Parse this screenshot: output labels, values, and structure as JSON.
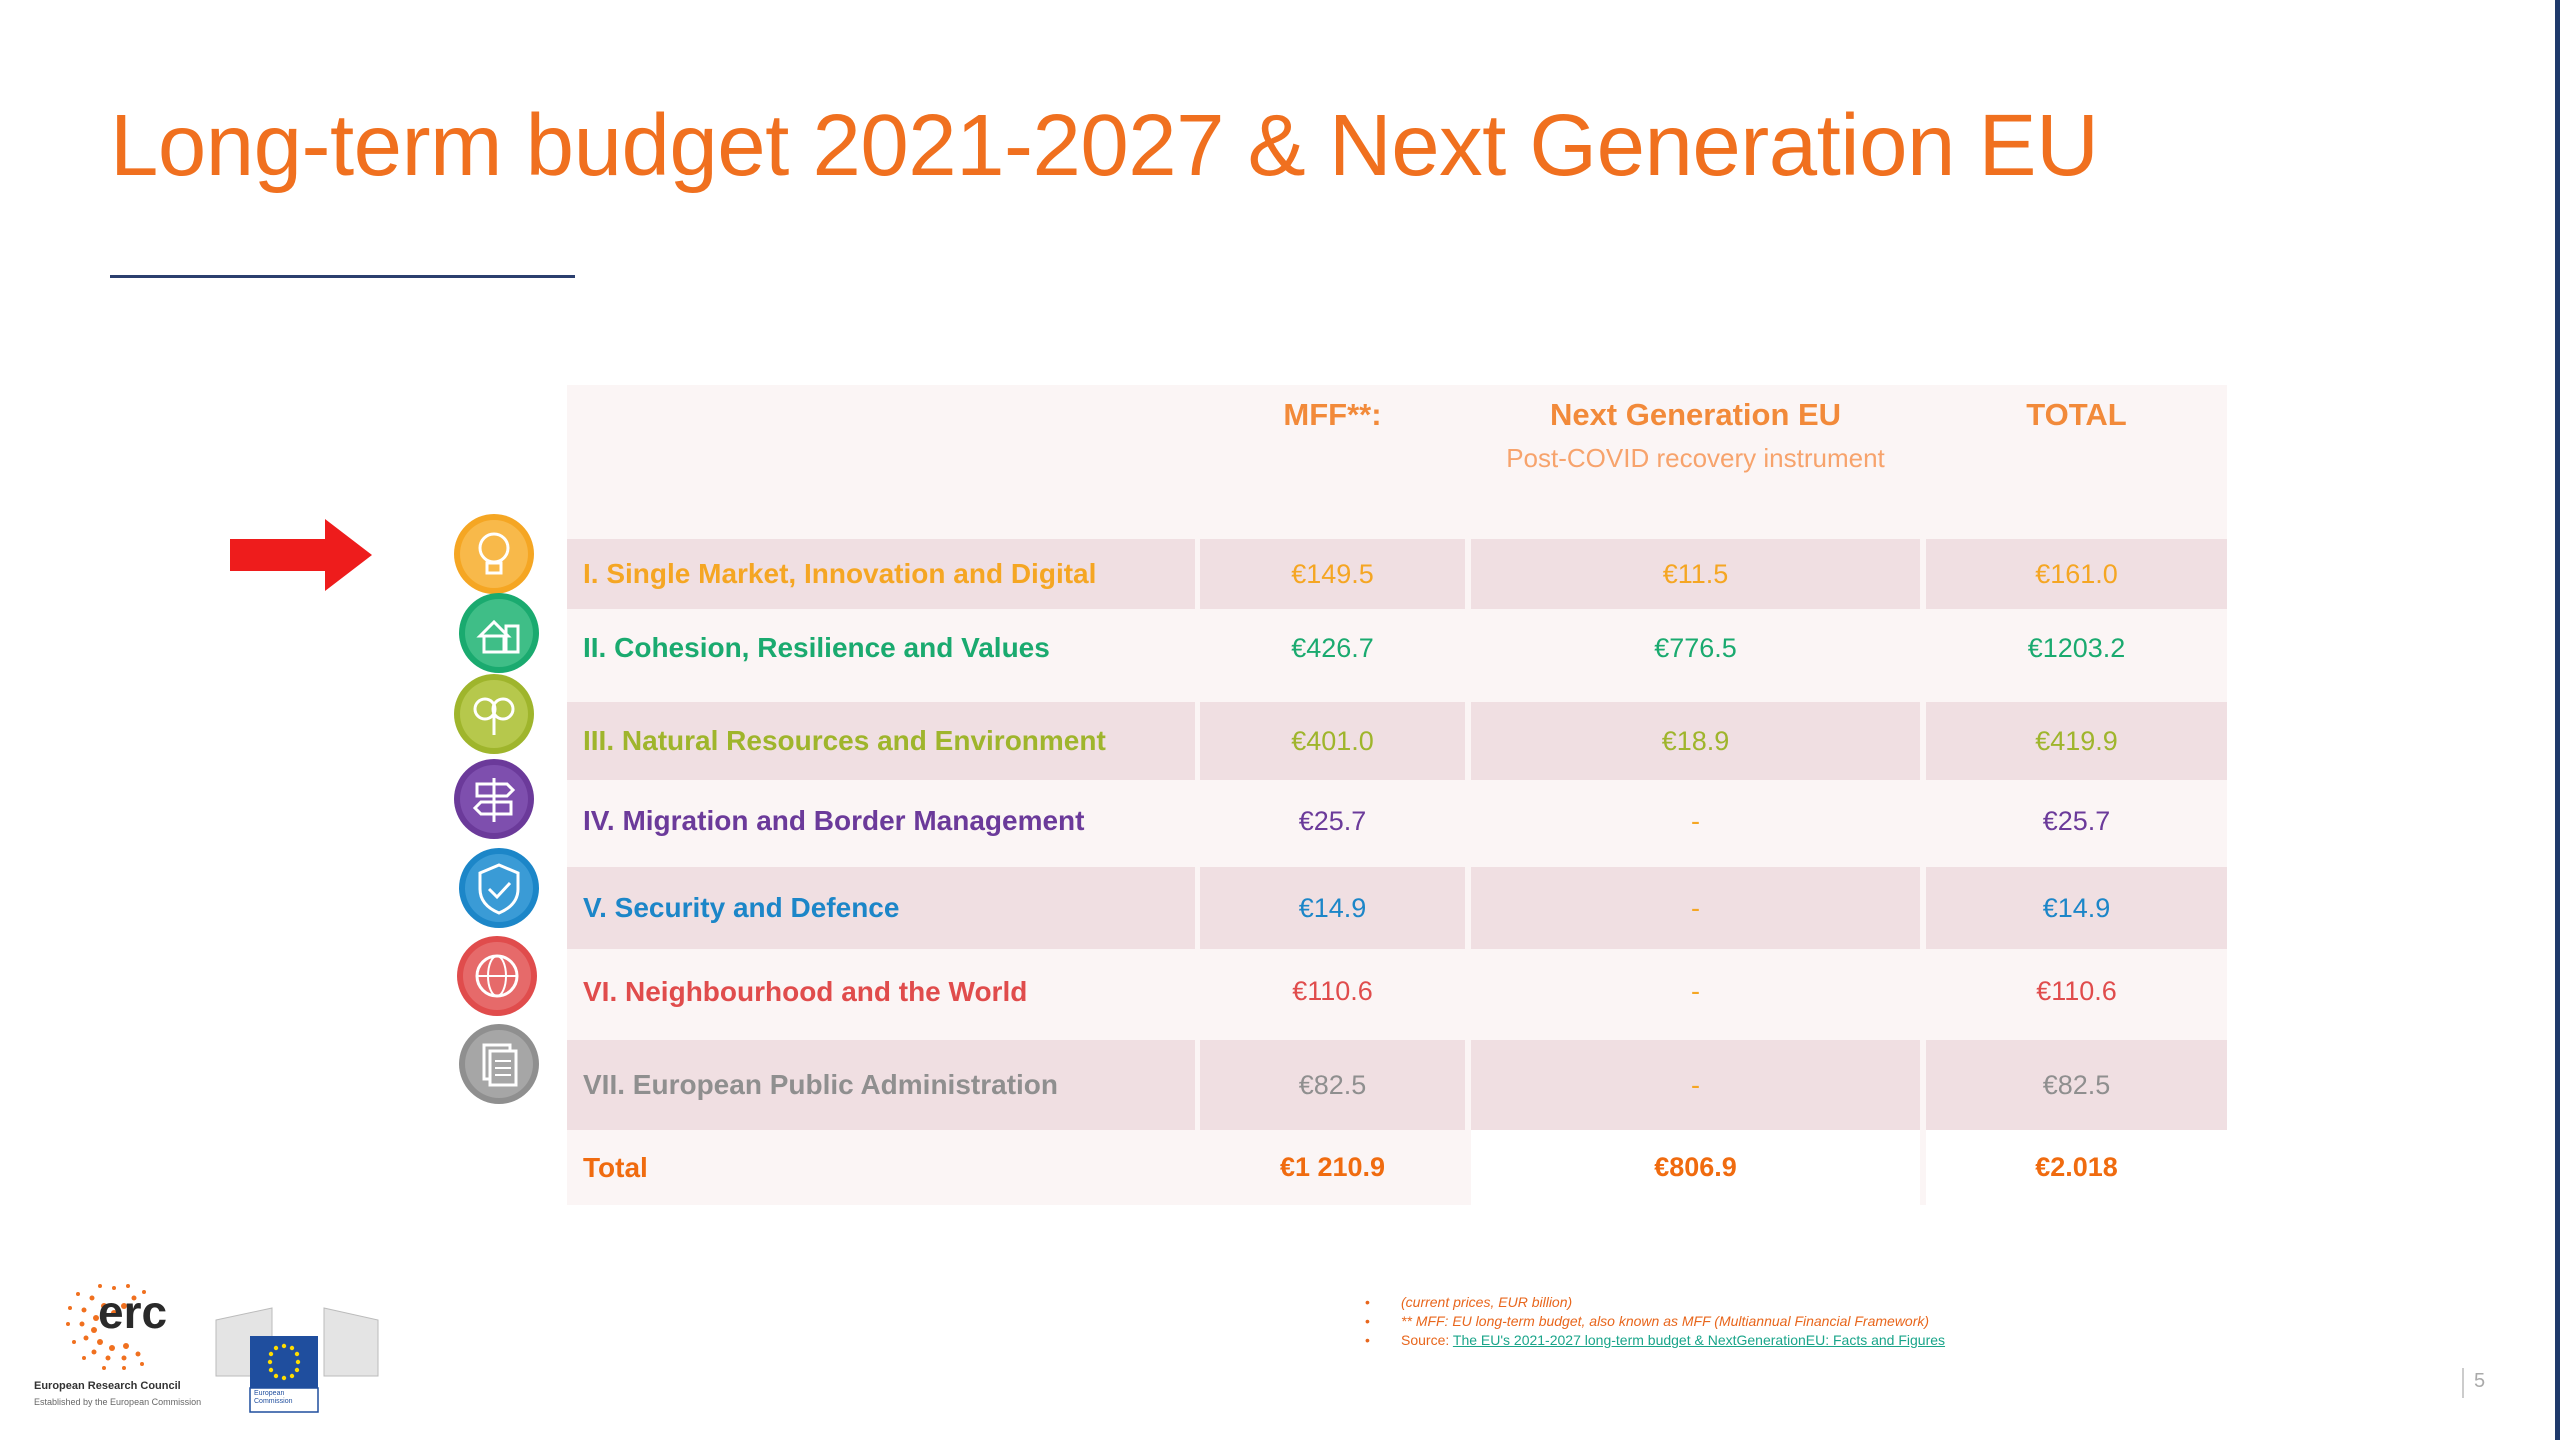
{
  "title": "Long-term budget 2021-2027 & Next Generation EU",
  "table": {
    "headers": {
      "mff": "MFF**:",
      "ngeu": "Next Generation EU",
      "ngeu_sub": "Post-COVID recovery instrument",
      "total": "TOTAL"
    },
    "rows": [
      {
        "label": "I. Single Market, Innovation and Digital",
        "mff": "€149.5",
        "ngeu": "€11.5",
        "total": "€161.0",
        "color": "#f5a623",
        "icon": "lightbulb-icon"
      },
      {
        "label": "II. Cohesion, Resilience and Values",
        "mff": "€426.7",
        "ngeu": "€776.5",
        "total": "€1203.2",
        "color": "#1aaa6f",
        "icon": "community-icon"
      },
      {
        "label": "III. Natural Resources and Environment",
        "mff": "€401.0",
        "ngeu": "€18.9",
        "total": "€419.9",
        "color": "#9fb52c",
        "icon": "tree-icon"
      },
      {
        "label": "IV. Migration and Border Management",
        "mff": "€25.7",
        "ngeu": "-",
        "total": "€25.7",
        "color": "#6b3a9a",
        "icon": "signpost-icon"
      },
      {
        "label": "V. Security and Defence",
        "mff": "€14.9",
        "ngeu": "-",
        "total": "€14.9",
        "color": "#1c86c8",
        "icon": "shield-icon"
      },
      {
        "label": "VI. Neighbourhood and the World",
        "mff": "€110.6",
        "ngeu": "-",
        "total": "€110.6",
        "color": "#e04c4c",
        "icon": "globe-icon"
      },
      {
        "label": "VII. European Public Administration",
        "mff": "€82.5",
        "ngeu": "-",
        "total": "€82.5",
        "color": "#8f8f8f",
        "icon": "documents-icon"
      }
    ],
    "total_row": {
      "label": "Total",
      "mff": "€1 210.9",
      "ngeu": "€806.9",
      "total": "€2.018"
    }
  },
  "footnotes": {
    "line1": "(current prices, EUR billion)",
    "line2": "** MFF: EU long-term budget, also known as MFF (Multiannual Financial Framework)",
    "source_label": "Source: ",
    "source_link": "The EU's 2021-2027 long-term budget & NextGenerationEU: Facts and Figures"
  },
  "logos": {
    "erc_text": "erc",
    "erc_name": "European Research Council",
    "erc_sub": "Established by the European Commission",
    "ec_name": "European Commission"
  },
  "page_number": "5",
  "colors": {
    "accent": "#f0701f",
    "ngeu_dash": "#f5a623",
    "rule": "#2b3f6e"
  }
}
